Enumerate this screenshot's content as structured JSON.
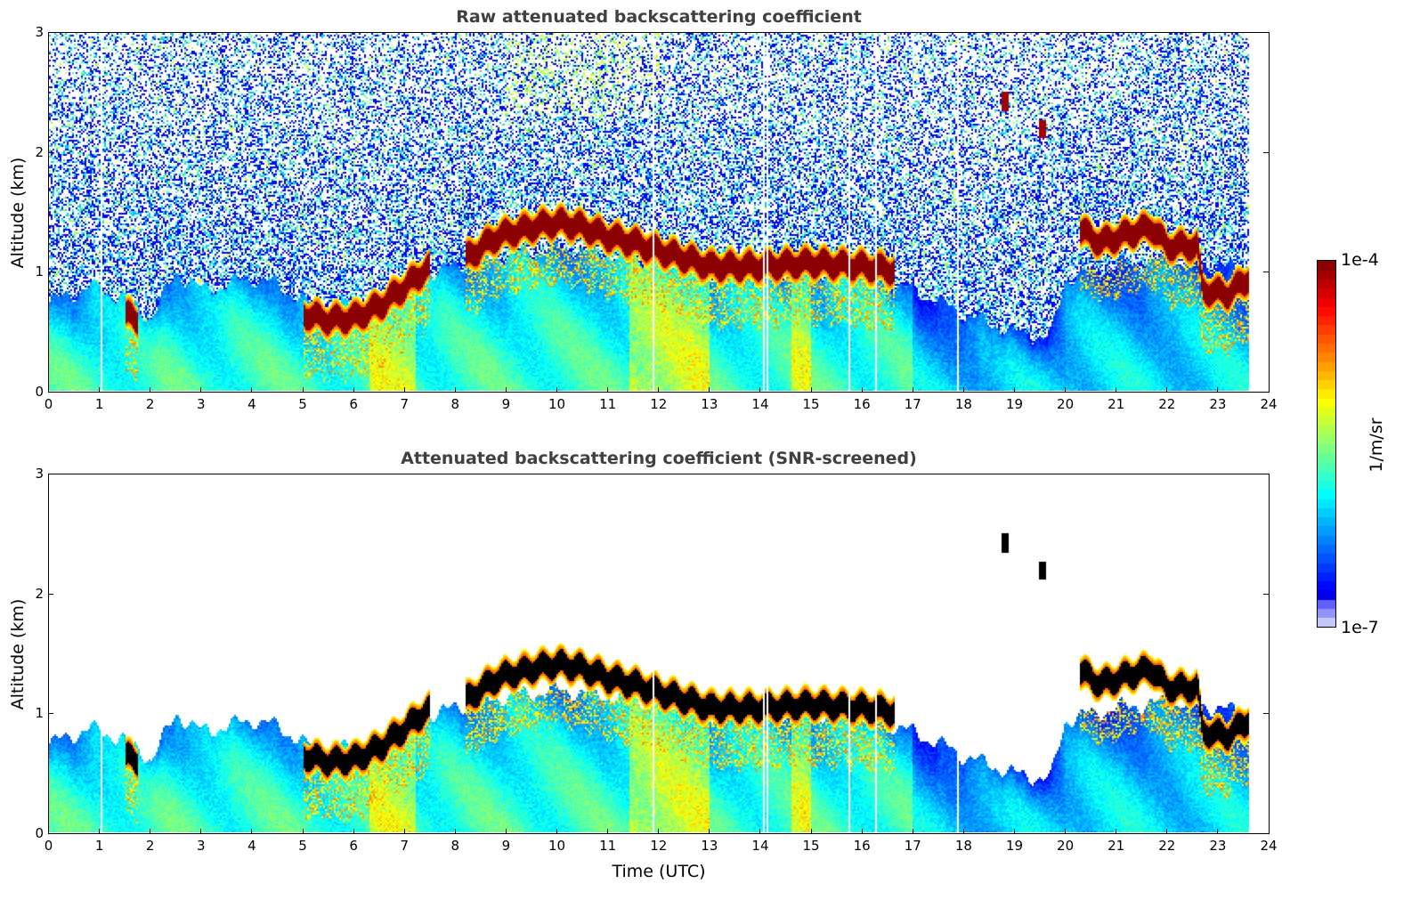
{
  "chart_data": [
    {
      "type": "heatmap",
      "title": "Raw attenuated backscattering coefficient",
      "xlabel": "",
      "ylabel": "Altitude (km)",
      "xlim": [
        0,
        24
      ],
      "ylim": [
        0,
        3
      ],
      "xticks": [
        "0",
        "1",
        "2",
        "3",
        "4",
        "5",
        "6",
        "7",
        "8",
        "9",
        "10",
        "11",
        "12",
        "13",
        "14",
        "15",
        "16",
        "17",
        "18",
        "19",
        "20",
        "21",
        "22",
        "23",
        "24"
      ],
      "yticks": [
        "0",
        "1",
        "2",
        "3"
      ],
      "data_end_time": 23.6,
      "screening": "none",
      "cloud_layer": {
        "description_units": "time (UTC h), altitude (km)",
        "points": [
          [
            1.5,
            0.65
          ],
          [
            1.7,
            0.6
          ],
          [
            5.0,
            0.65
          ],
          [
            5.5,
            0.6
          ],
          [
            6.0,
            0.62
          ],
          [
            6.5,
            0.72
          ],
          [
            7.0,
            0.88
          ],
          [
            7.4,
            1.02
          ],
          [
            8.2,
            1.12
          ],
          [
            8.8,
            1.3
          ],
          [
            9.5,
            1.38
          ],
          [
            10.0,
            1.42
          ],
          [
            10.5,
            1.38
          ],
          [
            11.0,
            1.3
          ],
          [
            11.5,
            1.25
          ],
          [
            12.0,
            1.18
          ],
          [
            12.5,
            1.12
          ],
          [
            13.0,
            1.05
          ],
          [
            14.0,
            1.05
          ],
          [
            15.0,
            1.08
          ],
          [
            16.0,
            1.05
          ],
          [
            16.6,
            1.02
          ],
          [
            20.3,
            1.35
          ],
          [
            20.7,
            1.25
          ],
          [
            21.2,
            1.32
          ],
          [
            21.7,
            1.38
          ],
          [
            22.0,
            1.22
          ],
          [
            22.6,
            1.22
          ],
          [
            22.7,
            0.85
          ],
          [
            23.2,
            0.82
          ],
          [
            23.6,
            0.95
          ]
        ]
      },
      "elevated_features": [
        [
          18.8,
          2.43
        ],
        [
          19.55,
          2.2
        ]
      ],
      "colorscale": "jet",
      "colorbar": {
        "min_label": "1e-7",
        "max_label": "1e-4",
        "unit": "1/m/sr",
        "scale": "log"
      }
    },
    {
      "type": "heatmap",
      "title": "Attenuated backscattering coefficient (SNR-screened)",
      "xlabel": "Time (UTC)",
      "ylabel": "Altitude (km)",
      "xlim": [
        0,
        24
      ],
      "ylim": [
        0,
        3
      ],
      "xticks": [
        "0",
        "1",
        "2",
        "3",
        "4",
        "5",
        "6",
        "7",
        "8",
        "9",
        "10",
        "11",
        "12",
        "13",
        "14",
        "15",
        "16",
        "17",
        "18",
        "19",
        "20",
        "21",
        "22",
        "23",
        "24"
      ],
      "yticks": [
        "0",
        "1",
        "2",
        "3"
      ],
      "data_end_time": 23.6,
      "screening": "SNR",
      "colorscale": "jet (saturated values shown black)",
      "colorbar": {
        "min_label": "1e-7",
        "max_label": "1e-4",
        "unit": "1/m/sr",
        "scale": "log"
      }
    }
  ],
  "colorbar": {
    "max_label": "1e-4",
    "min_label": "1e-7",
    "unit_label": "1/m/sr"
  }
}
